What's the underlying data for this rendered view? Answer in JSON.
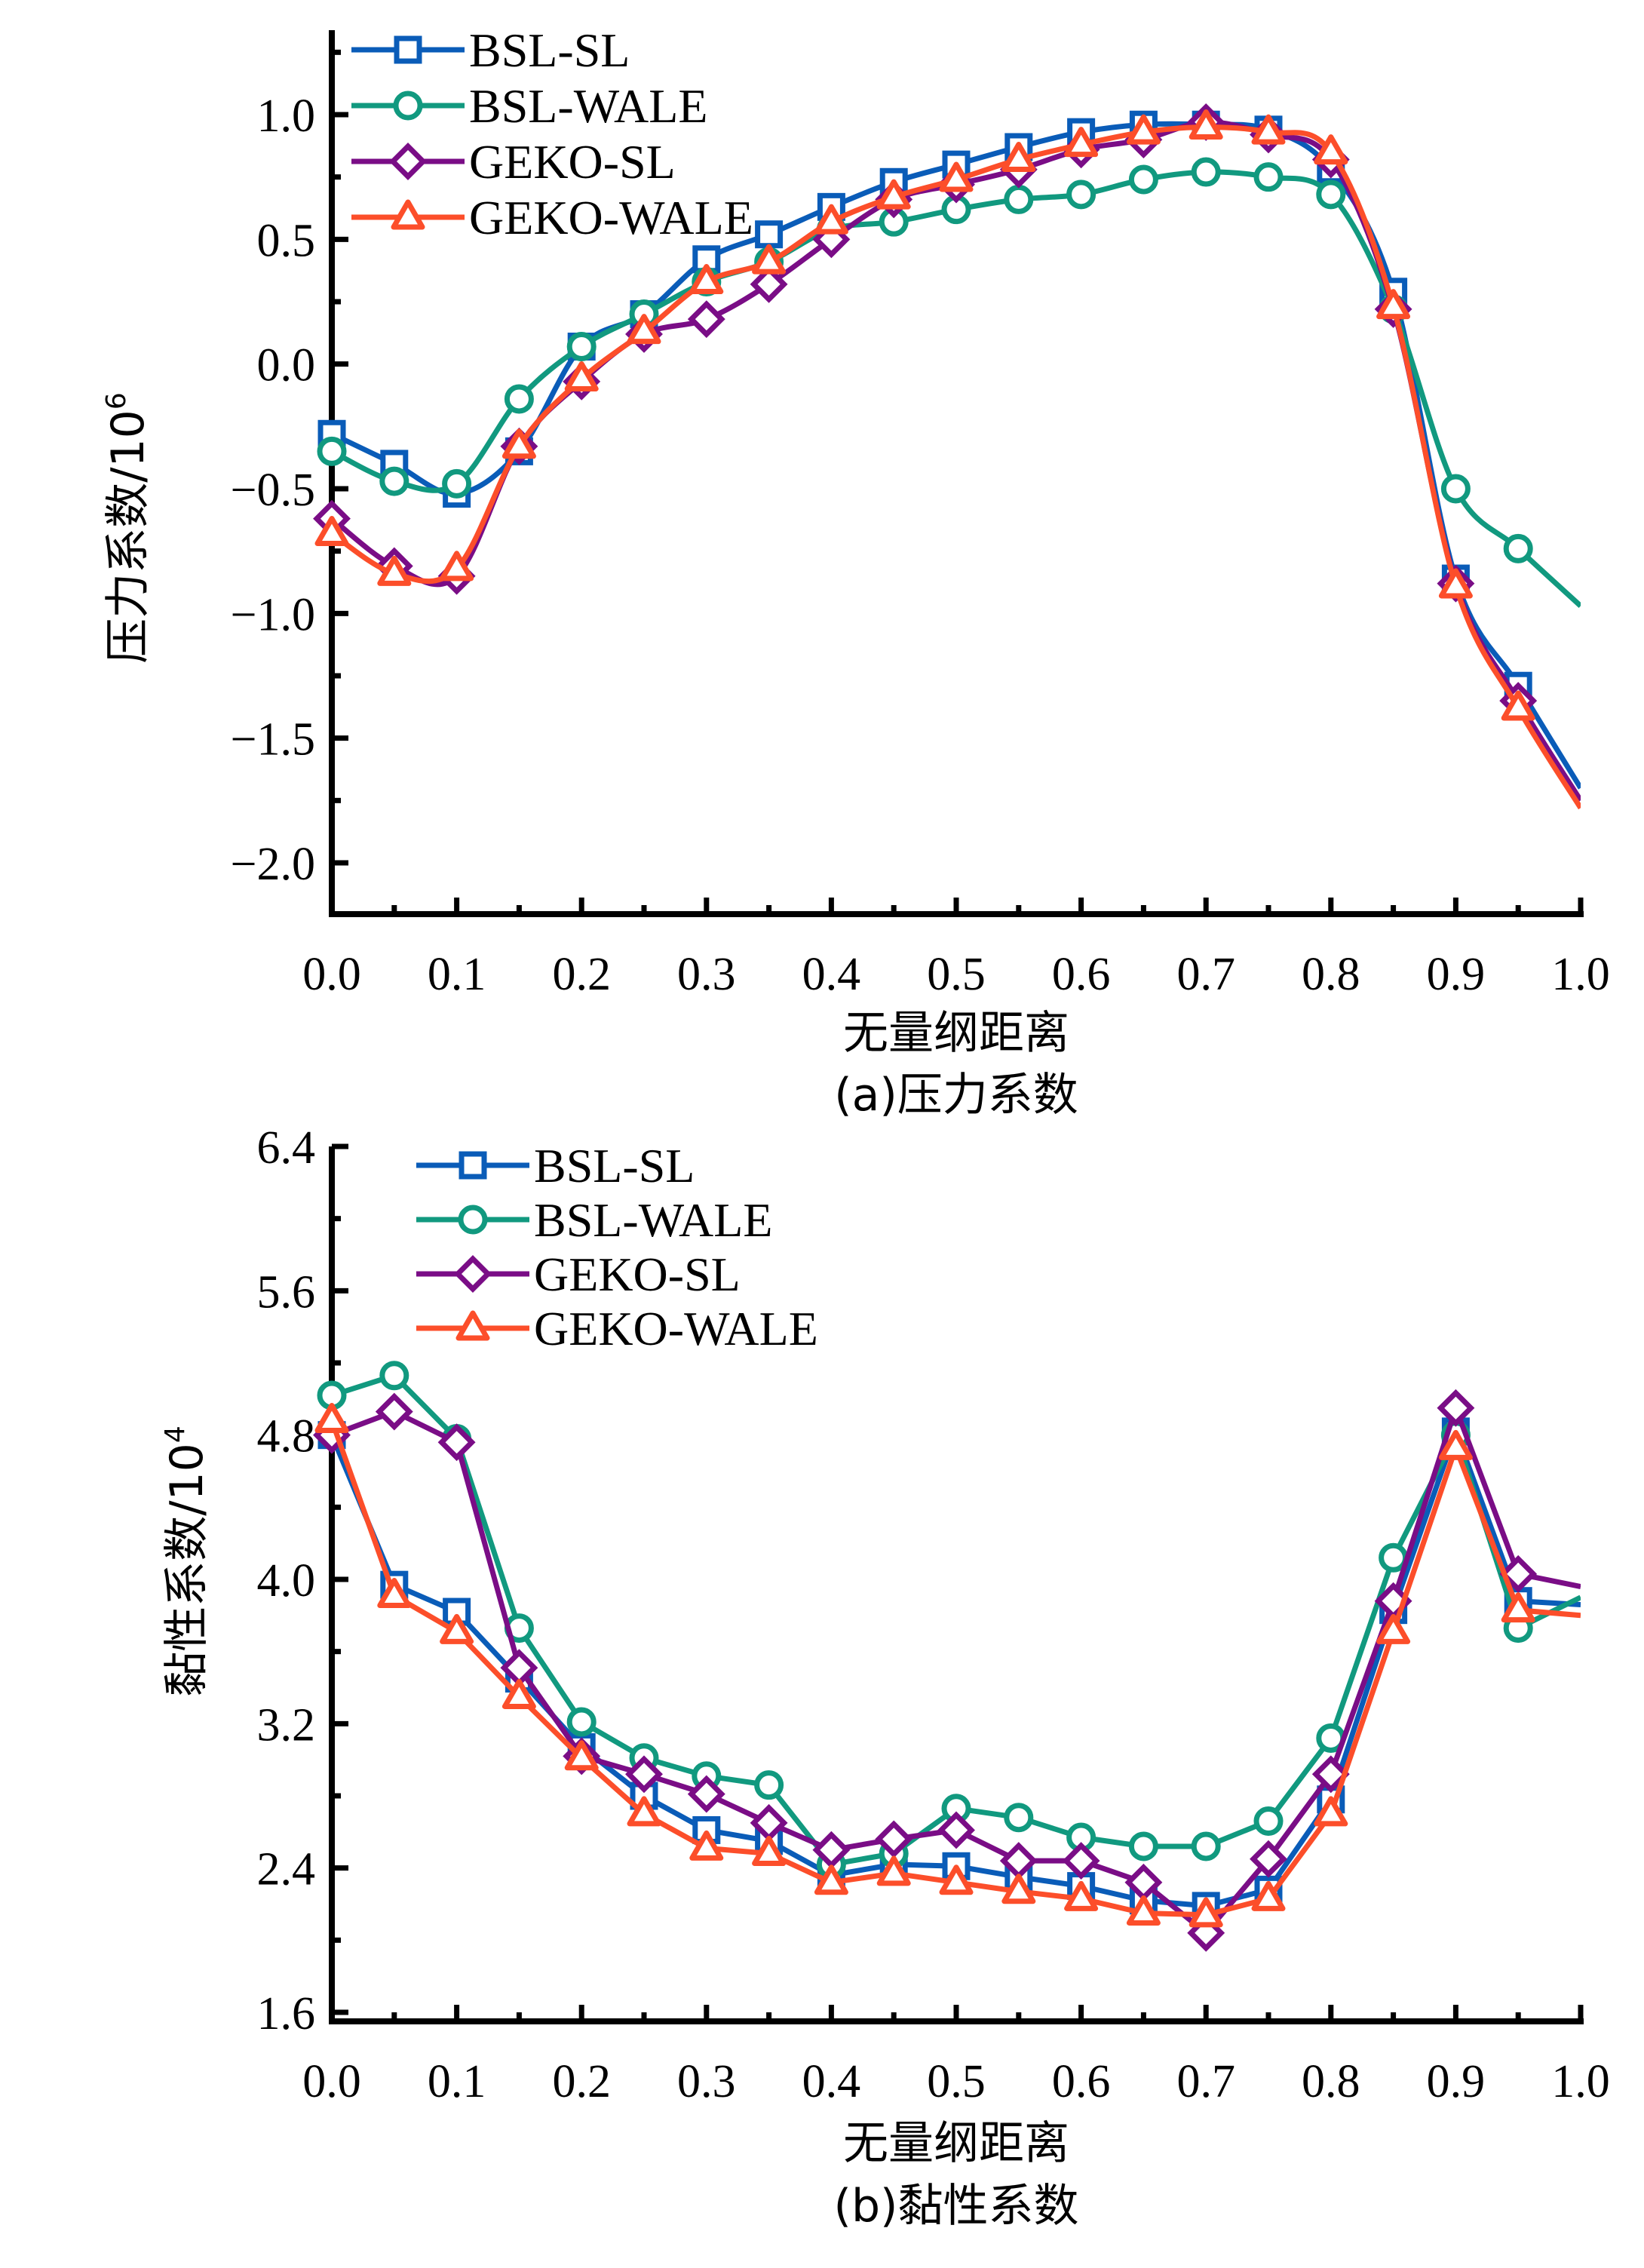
{
  "colors": {
    "BSL-SL": "#0a5cb8",
    "BSL-WALE": "#11997f",
    "GEKO-SL": "#7a0d86",
    "GEKO-WALE": "#fc4e2a",
    "axis": "#000000"
  },
  "chart_data": [
    {
      "type": "line",
      "panel": "a",
      "title": "",
      "caption": "(a)压力系数",
      "xlabel": "无量纲距离",
      "ylabel": "压力系数/10",
      "ylabel_sup": "6",
      "xlim": [
        0.0,
        1.0
      ],
      "ylim": [
        -2.2,
        1.3
      ],
      "xticks": [
        0.0,
        0.1,
        0.2,
        0.3,
        0.4,
        0.5,
        0.6,
        0.7,
        0.8,
        0.9,
        1.0
      ],
      "xtick_labels": [
        "0.0",
        "0.1",
        "0.2",
        "0.3",
        "0.4",
        "0.5",
        "0.6",
        "0.7",
        "0.8",
        "0.9",
        "1.0"
      ],
      "yticks": [
        1.0,
        0.5,
        0.0,
        -0.5,
        -1.0,
        -1.5,
        -2.0
      ],
      "ytick_labels": [
        "1.0",
        "0.5",
        "0.0",
        "−0.5",
        "−1.0",
        "−1.5",
        "−2.0"
      ],
      "grid": false,
      "legend_position": "top-left",
      "smooth": true,
      "x": [
        0.0,
        0.05,
        0.1,
        0.15,
        0.2,
        0.25,
        0.3,
        0.35,
        0.4,
        0.45,
        0.5,
        0.55,
        0.6,
        0.65,
        0.7,
        0.75,
        0.8,
        0.85,
        0.9,
        0.95,
        1.0
      ],
      "series": [
        {
          "name": "BSL-SL",
          "marker": "square",
          "values": [
            -0.28,
            -0.4,
            -0.52,
            -0.35,
            0.07,
            0.2,
            0.42,
            0.52,
            0.63,
            0.73,
            0.8,
            0.87,
            0.93,
            0.96,
            0.96,
            0.94,
            0.78,
            0.29,
            -0.86,
            -1.29,
            -1.7
          ]
        },
        {
          "name": "BSL-WALE",
          "marker": "circle",
          "values": [
            -0.35,
            -0.47,
            -0.48,
            -0.14,
            0.07,
            0.2,
            0.33,
            0.41,
            0.54,
            0.57,
            0.62,
            0.66,
            0.68,
            0.74,
            0.77,
            0.75,
            0.68,
            0.22,
            -0.5,
            -0.74,
            -0.97
          ]
        },
        {
          "name": "GEKO-SL",
          "marker": "diamond",
          "values": [
            -0.62,
            -0.81,
            -0.85,
            -0.33,
            -0.07,
            0.12,
            0.18,
            0.32,
            0.5,
            0.66,
            0.72,
            0.78,
            0.86,
            0.9,
            0.97,
            0.92,
            0.82,
            0.22,
            -0.88,
            -1.35,
            -1.75
          ]
        },
        {
          "name": "GEKO-WALE",
          "marker": "triangle",
          "values": [
            -0.68,
            -0.84,
            -0.82,
            -0.33,
            -0.06,
            0.13,
            0.33,
            0.41,
            0.57,
            0.67,
            0.74,
            0.82,
            0.88,
            0.93,
            0.95,
            0.93,
            0.85,
            0.23,
            -0.89,
            -1.38,
            -1.78
          ]
        }
      ]
    },
    {
      "type": "line",
      "panel": "b",
      "title": "",
      "caption": "(b)黏性系数",
      "xlabel": "无量纲距离",
      "ylabel": "黏性系数/10",
      "ylabel_sup": "4",
      "xlim": [
        0.0,
        1.0
      ],
      "ylim": [
        1.5,
        6.4
      ],
      "xticks": [
        0.0,
        0.1,
        0.2,
        0.3,
        0.4,
        0.5,
        0.6,
        0.7,
        0.8,
        0.9,
        1.0
      ],
      "xtick_labels": [
        "0.0",
        "0.1",
        "0.2",
        "0.3",
        "0.4",
        "0.5",
        "0.6",
        "0.7",
        "0.8",
        "0.9",
        "1.0"
      ],
      "yticks": [
        6.4,
        5.6,
        4.8,
        4.0,
        3.2,
        2.4,
        1.6
      ],
      "ytick_labels": [
        "6.4",
        "5.6",
        "4.8",
        "4.0",
        "3.2",
        "2.4",
        "1.6"
      ],
      "grid": false,
      "legend_position": "top-left",
      "smooth": false,
      "x": [
        0.0,
        0.05,
        0.1,
        0.15,
        0.2,
        0.25,
        0.3,
        0.35,
        0.4,
        0.45,
        0.5,
        0.55,
        0.6,
        0.65,
        0.7,
        0.75,
        0.8,
        0.85,
        0.9,
        0.95,
        1.0
      ],
      "series": [
        {
          "name": "BSL-SL",
          "marker": "square",
          "values": [
            4.8,
            3.97,
            3.82,
            3.45,
            3.07,
            2.8,
            2.61,
            2.55,
            2.36,
            2.42,
            2.41,
            2.35,
            2.3,
            2.22,
            2.19,
            2.28,
            2.78,
            3.83,
            4.82,
            3.88,
            3.86
          ]
        },
        {
          "name": "BSL-WALE",
          "marker": "circle",
          "values": [
            5.02,
            5.13,
            4.78,
            3.73,
            3.21,
            3.01,
            2.91,
            2.86,
            2.42,
            2.48,
            2.73,
            2.68,
            2.57,
            2.52,
            2.52,
            2.66,
            3.12,
            4.12,
            4.8,
            3.73,
            3.9
          ]
        },
        {
          "name": "GEKO-SL",
          "marker": "diamond",
          "values": [
            4.8,
            4.93,
            4.76,
            3.51,
            3.02,
            2.92,
            2.81,
            2.65,
            2.5,
            2.56,
            2.61,
            2.44,
            2.44,
            2.32,
            2.04,
            2.45,
            2.92,
            3.88,
            4.95,
            4.03,
            3.96
          ]
        },
        {
          "name": "GEKO-WALE",
          "marker": "triangle",
          "values": [
            4.88,
            3.91,
            3.71,
            3.35,
            3.01,
            2.7,
            2.51,
            2.48,
            2.32,
            2.37,
            2.32,
            2.27,
            2.23,
            2.15,
            2.14,
            2.23,
            2.7,
            3.71,
            4.73,
            3.83,
            3.8
          ]
        }
      ]
    }
  ]
}
